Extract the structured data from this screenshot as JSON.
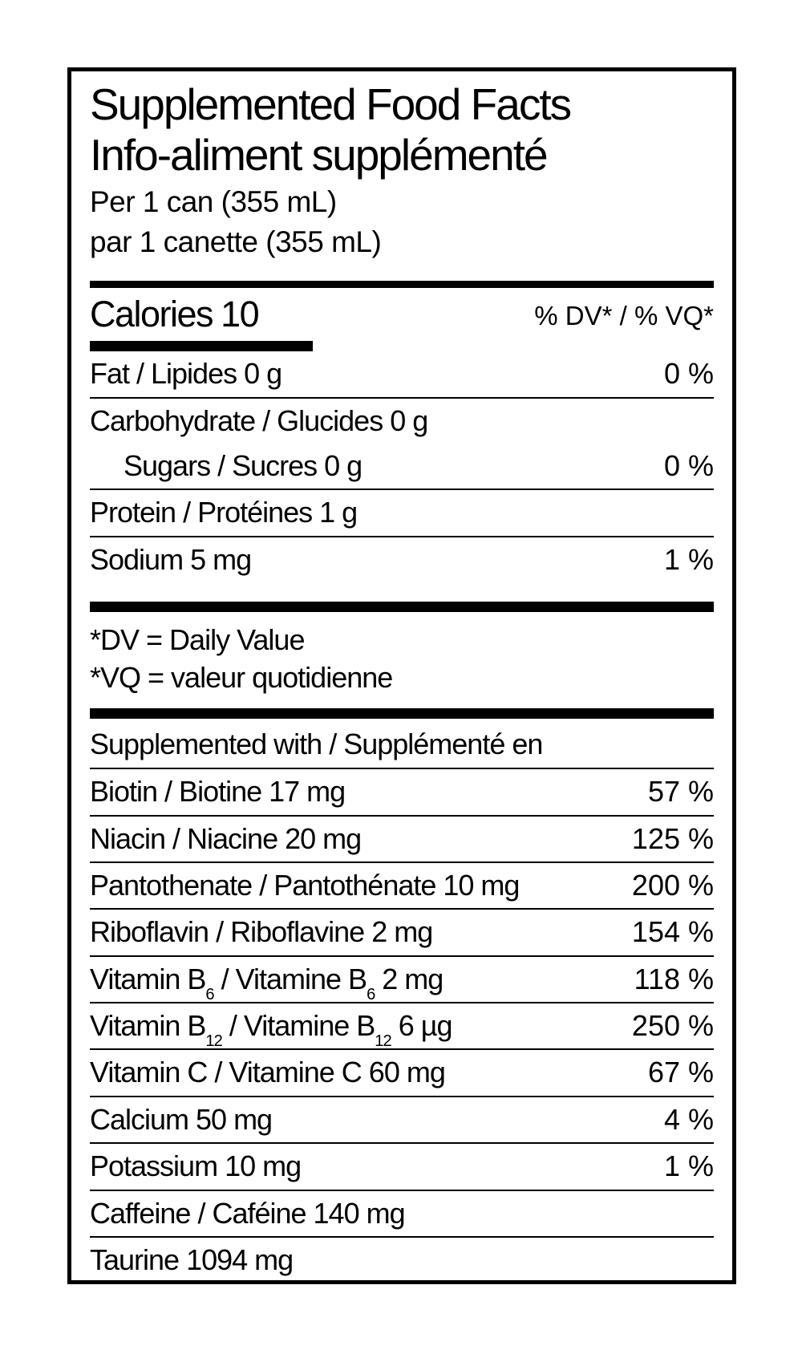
{
  "label": {
    "title_en": "Supplemented Food Facts",
    "title_fr": "Info-aliment supplémenté",
    "serving_en": "Per 1 can (355 mL)",
    "serving_fr": "par 1 canette (355 mL)",
    "calories": {
      "label": "Calories",
      "value": "10"
    },
    "dv_header": "% DV* / % VQ*",
    "nutrients": [
      {
        "parts": [
          {
            "text": "Fat / Lipides 0 g"
          }
        ],
        "dv": "0 %",
        "indent": false,
        "rule_above": false
      },
      {
        "parts": [
          {
            "text": "Carbohydrate / Glucides 0 g"
          }
        ],
        "dv": "",
        "indent": false,
        "rule_above": true
      },
      {
        "parts": [
          {
            "text": "Sugars / Sucres 0 g"
          }
        ],
        "dv": "0 %",
        "indent": true,
        "rule_above": false
      },
      {
        "parts": [
          {
            "text": "Protein / Protéines 1 g"
          }
        ],
        "dv": "",
        "indent": false,
        "rule_above": true
      },
      {
        "parts": [
          {
            "text": "Sodium 5 mg"
          }
        ],
        "dv": "1 %",
        "indent": false,
        "rule_above": true
      }
    ],
    "footnotes": [
      "*DV = Daily Value",
      "*VQ = valeur quotidienne"
    ],
    "supplemented_header": "Supplemented with / Supplémenté en",
    "supplemented": [
      {
        "parts": [
          {
            "text": "Biotin / Biotine 17 mg"
          }
        ],
        "dv": "57 %"
      },
      {
        "parts": [
          {
            "text": "Niacin / Niacine 20 mg"
          }
        ],
        "dv": "125 %"
      },
      {
        "parts": [
          {
            "text": "Pantothenate / Pantothénate 10 mg"
          }
        ],
        "dv": "200 %"
      },
      {
        "parts": [
          {
            "text": "Riboflavin / Riboflavine 2 mg"
          }
        ],
        "dv": "154 %"
      },
      {
        "parts": [
          {
            "text": "Vitamin B"
          },
          {
            "sub": "6"
          },
          {
            "text": " / Vitamine B"
          },
          {
            "sub": "6"
          },
          {
            "text": " 2 mg"
          }
        ],
        "dv": "118 %"
      },
      {
        "parts": [
          {
            "text": "Vitamin B"
          },
          {
            "sub": "12"
          },
          {
            "text": " / Vitamine B"
          },
          {
            "sub": "12"
          },
          {
            "text": " 6 µg"
          }
        ],
        "dv": "250 %"
      },
      {
        "parts": [
          {
            "text": "Vitamin C / Vitamine C 60 mg"
          }
        ],
        "dv": "67 %"
      },
      {
        "parts": [
          {
            "text": "Calcium 50 mg"
          }
        ],
        "dv": "4 %"
      },
      {
        "parts": [
          {
            "text": "Potassium 10 mg"
          }
        ],
        "dv": "1 %"
      },
      {
        "parts": [
          {
            "text": "Caffeine / Caféine 140 mg"
          }
        ],
        "dv": ""
      },
      {
        "parts": [
          {
            "text": "Taurine 1094 mg"
          }
        ],
        "dv": ""
      }
    ]
  }
}
